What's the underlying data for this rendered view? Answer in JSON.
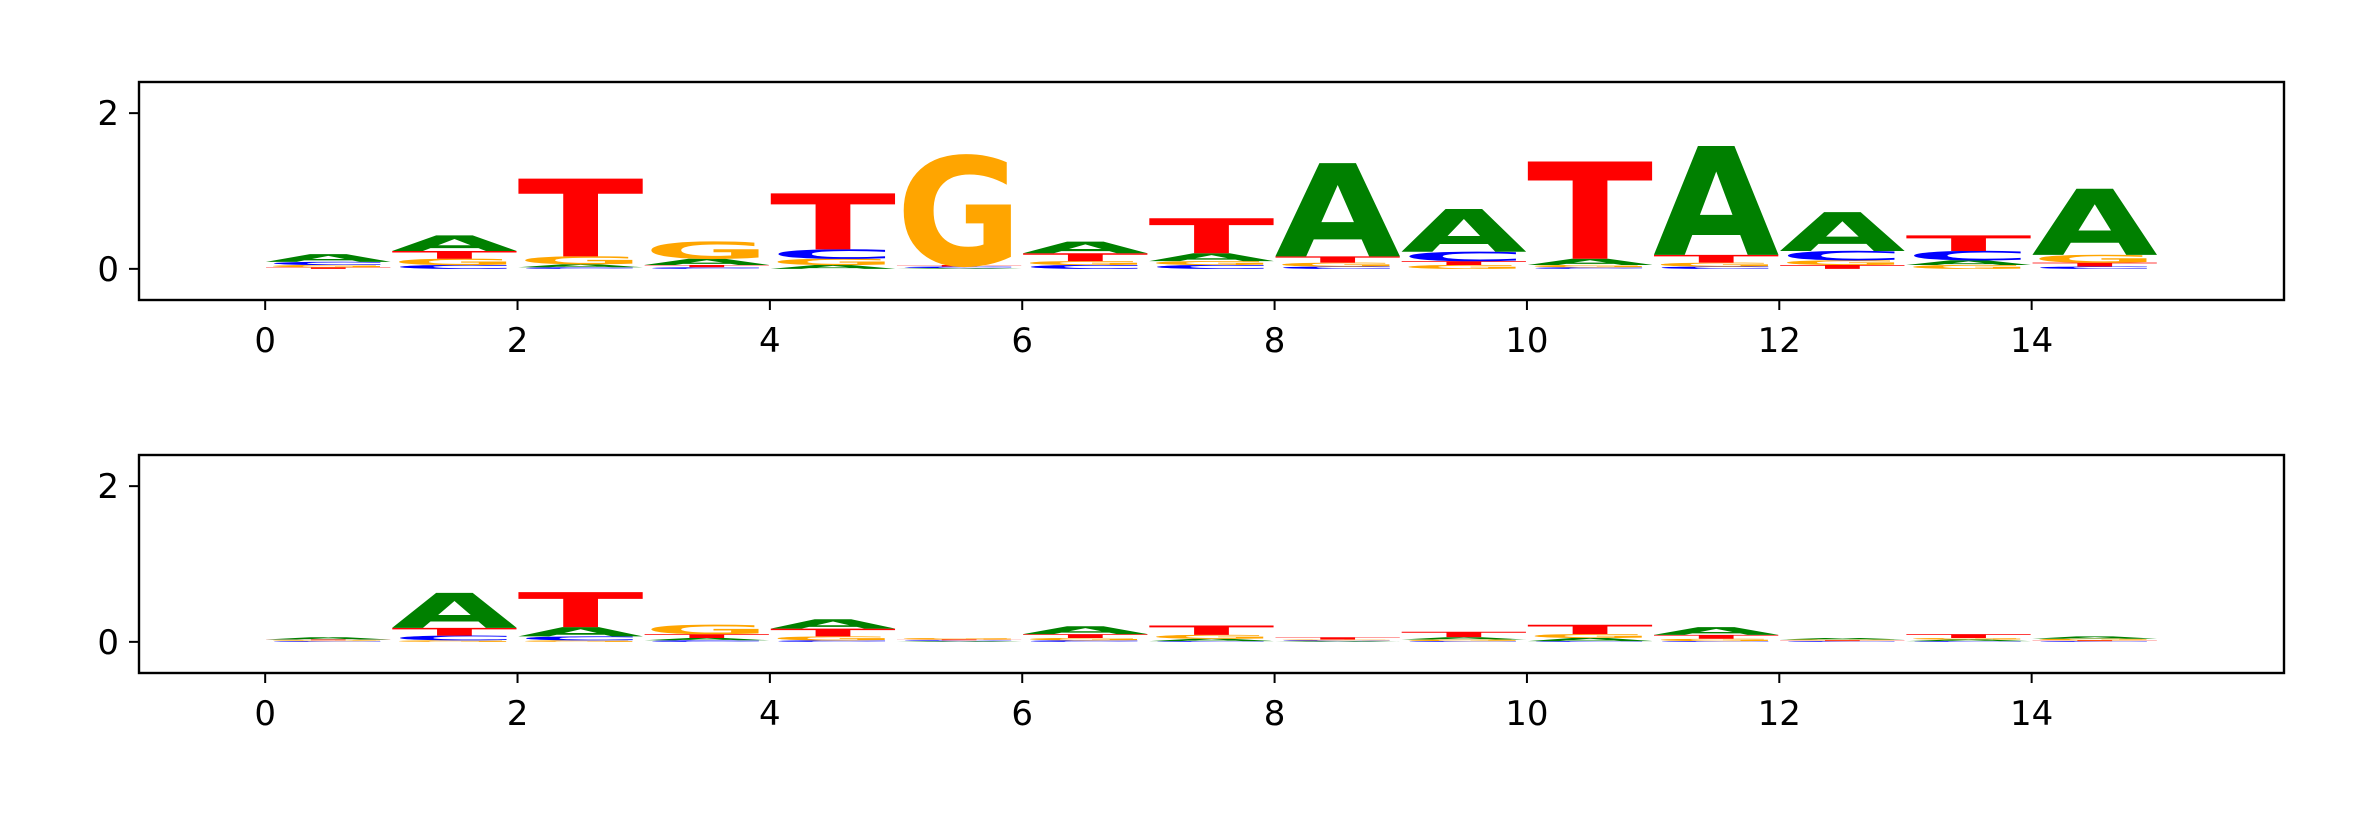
{
  "colors": {
    "A": "#008000",
    "C": "#0000ff",
    "G": "#ffa500",
    "T": "#ff0000"
  },
  "chart_data": [
    {
      "type": "sequence-logo",
      "title": "",
      "xlabel": "",
      "ylabel": "",
      "xlim": [
        -1,
        16
      ],
      "ylim": [
        -0.4,
        2.4
      ],
      "xticks": [
        0,
        2,
        4,
        6,
        8,
        10,
        12,
        14
      ],
      "yticks": [
        0,
        2
      ],
      "grid": false,
      "legend": "none",
      "positions": [
        {
          "x": 0,
          "letters": {
            "T": 0.02,
            "G": 0.03,
            "C": 0.04,
            "A": 0.1
          }
        },
        {
          "x": 1,
          "letters": {
            "C": 0.05,
            "G": 0.08,
            "T": 0.1,
            "A": 0.2
          }
        },
        {
          "x": 2,
          "letters": {
            "C": 0.02,
            "A": 0.04,
            "G": 0.1,
            "T": 1.0
          }
        },
        {
          "x": 3,
          "letters": {
            "C": 0.02,
            "T": 0.03,
            "A": 0.08,
            "G": 0.22
          }
        },
        {
          "x": 4,
          "letters": {
            "A": 0.05,
            "G": 0.08,
            "C": 0.12,
            "T": 0.72
          }
        },
        {
          "x": 5,
          "letters": {
            "A": 0.01,
            "C": 0.02,
            "T": 0.02,
            "G": 1.4
          }
        },
        {
          "x": 6,
          "letters": {
            "C": 0.05,
            "G": 0.05,
            "T": 0.1,
            "A": 0.15
          }
        },
        {
          "x": 7,
          "letters": {
            "C": 0.05,
            "G": 0.05,
            "A": 0.1,
            "T": 0.45
          }
        },
        {
          "x": 8,
          "letters": {
            "C": 0.03,
            "G": 0.05,
            "T": 0.08,
            "A": 1.2
          }
        },
        {
          "x": 9,
          "letters": {
            "G": 0.05,
            "T": 0.05,
            "C": 0.12,
            "A": 0.55
          }
        },
        {
          "x": 10,
          "letters": {
            "C": 0.02,
            "G": 0.03,
            "A": 0.08,
            "T": 1.25
          }
        },
        {
          "x": 11,
          "letters": {
            "C": 0.03,
            "G": 0.05,
            "T": 0.1,
            "A": 1.4
          }
        },
        {
          "x": 12,
          "letters": {
            "T": 0.05,
            "G": 0.06,
            "C": 0.12,
            "A": 0.5
          }
        },
        {
          "x": 13,
          "letters": {
            "G": 0.05,
            "A": 0.06,
            "C": 0.12,
            "T": 0.2
          }
        },
        {
          "x": 14,
          "letters": {
            "C": 0.03,
            "T": 0.05,
            "G": 0.1,
            "A": 0.85
          }
        }
      ]
    },
    {
      "type": "sequence-logo",
      "title": "",
      "xlabel": "",
      "ylabel": "",
      "xlim": [
        -1,
        16
      ],
      "ylim": [
        -0.4,
        2.4
      ],
      "xticks": [
        0,
        2,
        4,
        6,
        8,
        10,
        12,
        14
      ],
      "yticks": [
        0,
        2
      ],
      "grid": false,
      "legend": "none",
      "positions": [
        {
          "x": 0,
          "letters": {
            "C": 0.01,
            "G": 0.01,
            "T": 0.01,
            "A": 0.03
          }
        },
        {
          "x": 1,
          "letters": {
            "G": 0.02,
            "C": 0.06,
            "T": 0.1,
            "A": 0.45
          }
        },
        {
          "x": 2,
          "letters": {
            "G": 0.02,
            "C": 0.05,
            "A": 0.12,
            "T": 0.45
          }
        },
        {
          "x": 3,
          "letters": {
            "C": 0.02,
            "A": 0.03,
            "T": 0.05,
            "G": 0.12
          }
        },
        {
          "x": 4,
          "letters": {
            "C": 0.02,
            "G": 0.05,
            "T": 0.1,
            "A": 0.12
          }
        },
        {
          "x": 5,
          "letters": {
            "A": 0.01,
            "C": 0.01,
            "T": 0.01,
            "G": 0.02
          }
        },
        {
          "x": 6,
          "letters": {
            "C": 0.02,
            "G": 0.03,
            "T": 0.05,
            "A": 0.1
          }
        },
        {
          "x": 7,
          "letters": {
            "C": 0.01,
            "A": 0.03,
            "G": 0.05,
            "T": 0.12
          }
        },
        {
          "x": 8,
          "letters": {
            "A": 0.01,
            "C": 0.01,
            "G": 0.01,
            "T": 0.03
          }
        },
        {
          "x": 9,
          "letters": {
            "C": 0.01,
            "G": 0.02,
            "A": 0.03,
            "T": 0.07
          }
        },
        {
          "x": 10,
          "letters": {
            "C": 0.01,
            "A": 0.04,
            "G": 0.05,
            "T": 0.12
          }
        },
        {
          "x": 11,
          "letters": {
            "C": 0.01,
            "G": 0.03,
            "T": 0.05,
            "A": 0.1
          }
        },
        {
          "x": 12,
          "letters": {
            "C": 0.01,
            "T": 0.01,
            "G": 0.01,
            "A": 0.02
          }
        },
        {
          "x": 13,
          "letters": {
            "C": 0.01,
            "A": 0.02,
            "G": 0.02,
            "T": 0.05
          }
        },
        {
          "x": 14,
          "letters": {
            "C": 0.01,
            "T": 0.01,
            "G": 0.02,
            "A": 0.03
          }
        }
      ]
    }
  ]
}
